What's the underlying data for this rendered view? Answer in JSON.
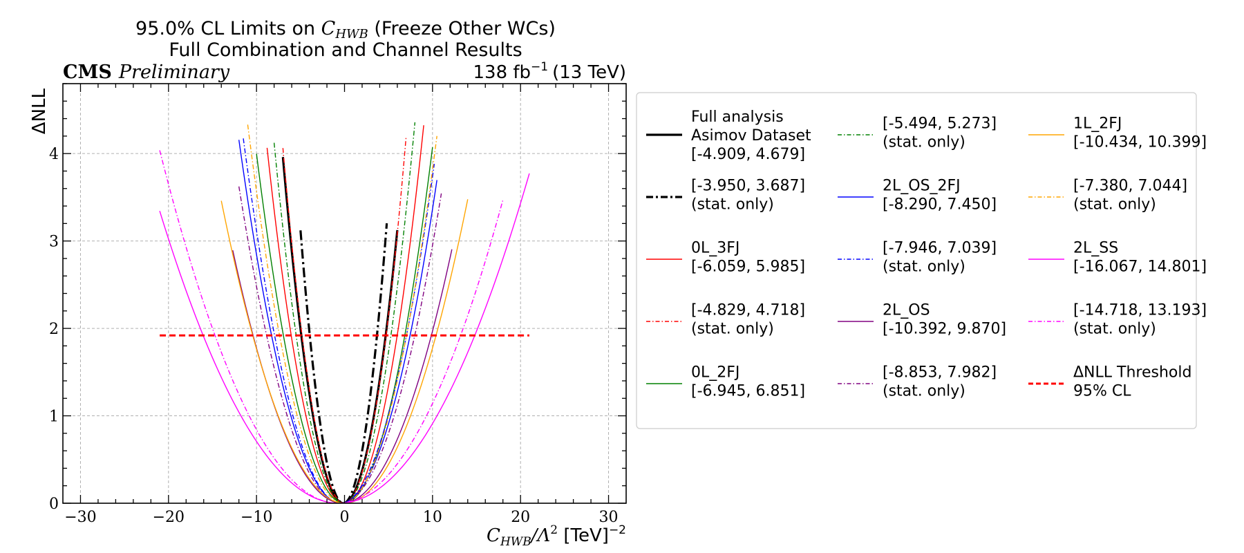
{
  "chart_data": {
    "type": "line",
    "title": {
      "line1_prefix": "95.0% CL Limits on ",
      "line1_symbol": "C",
      "line1_symbol_sub": "HWB",
      "line1_suffix": " (Freeze Other WCs)",
      "line2": "Full Combination and Channel Results"
    },
    "experiment": {
      "name": "CMS",
      "status": "Preliminary"
    },
    "luminosity": {
      "value": "138 fb",
      "exponent": "−1",
      "energy": "(13 TeV)"
    },
    "xlabel": {
      "symbol": "C",
      "sub": "HWB",
      "rest": "/Λ",
      "power": "2",
      "unit": " [TeV]",
      "unit_power": "−2"
    },
    "ylabel": "ΔNLL",
    "xlim": [
      -32,
      32
    ],
    "ylim": [
      0,
      4.8
    ],
    "x_ticks": [
      -30,
      -20,
      -10,
      0,
      10,
      20,
      30
    ],
    "x_tick_labels": [
      "−30",
      "−20",
      "−10",
      "0",
      "10",
      "20",
      "30"
    ],
    "y_ticks": [
      0,
      1,
      2,
      3,
      4
    ],
    "y_tick_labels": [
      "0",
      "1",
      "2",
      "3",
      "4"
    ],
    "grid": true,
    "legend_placement": "right, outside plot, 3 columns",
    "threshold": {
      "y": 1.92,
      "x_range": [
        -21,
        21
      ],
      "color": "#ff0000",
      "style": "dashed"
    },
    "series": [
      {
        "name": "Full analysis",
        "label_lines": [
          "Full analysis",
          "Asimov Dataset",
          "[-4.909, 4.679]"
        ],
        "lo": -4.909,
        "hi": 4.679,
        "color": "#000000",
        "style": "solid",
        "width": 3.2,
        "xrange": [
          -7.0,
          6.0
        ]
      },
      {
        "name": "stat. only",
        "label_lines": [
          "[-3.950, 3.687]",
          "(stat. only)"
        ],
        "lo": -3.95,
        "hi": 3.687,
        "color": "#000000",
        "style": "dashdot",
        "width": 3.2,
        "xrange": [
          -5.0,
          4.8
        ]
      },
      {
        "name": "0L_3FJ",
        "label_lines": [
          "0L_3FJ",
          "[-6.059, 5.985]"
        ],
        "lo": -6.059,
        "hi": 5.985,
        "color": "#ff0000",
        "style": "solid",
        "width": 1.4,
        "xrange": [
          -8.8,
          9.0
        ]
      },
      {
        "name": "stat. only",
        "label_lines": [
          "[-4.829, 4.718]",
          "(stat. only)"
        ],
        "lo": -4.829,
        "hi": 4.718,
        "color": "#ff0000",
        "style": "dashdot",
        "width": 1.4,
        "xrange": [
          -7.0,
          7.0
        ]
      },
      {
        "name": "0L_2FJ",
        "label_lines": [
          "0L_2FJ",
          "[-6.945, 6.851]"
        ],
        "lo": -6.945,
        "hi": 6.851,
        "color": "#008000",
        "style": "solid",
        "width": 1.4,
        "xrange": [
          -10.0,
          10.0
        ]
      },
      {
        "name": "stat. only",
        "label_lines": [
          "[-5.494, 5.273]",
          "(stat. only)"
        ],
        "lo": -5.494,
        "hi": 5.273,
        "color": "#008000",
        "style": "dashdot",
        "width": 1.4,
        "xrange": [
          -8.0,
          8.0
        ]
      },
      {
        "name": "2L_OS_2FJ",
        "label_lines": [
          "2L_OS_2FJ",
          "[-8.290, 7.450]"
        ],
        "lo": -8.29,
        "hi": 7.45,
        "color": "#0000ff",
        "style": "solid",
        "width": 1.4,
        "xrange": [
          -12.0,
          10.5
        ]
      },
      {
        "name": "stat. only",
        "label_lines": [
          "[-7.946, 7.039]",
          "(stat. only)"
        ],
        "lo": -7.946,
        "hi": 7.039,
        "color": "#0000ff",
        "style": "dashdot",
        "width": 1.4,
        "xrange": [
          -11.5,
          10.2
        ]
      },
      {
        "name": "2L_OS",
        "label_lines": [
          "2L_OS",
          "[-10.392, 9.870]"
        ],
        "lo": -10.392,
        "hi": 9.87,
        "color": "#800080",
        "style": "solid",
        "width": 1.4,
        "xrange": [
          -12.7,
          12.2
        ]
      },
      {
        "name": "stat. only",
        "label_lines": [
          "[-8.853, 7.982]",
          "(stat. only)"
        ],
        "lo": -8.853,
        "hi": 7.982,
        "color": "#800080",
        "style": "dashdot",
        "width": 1.4,
        "xrange": [
          -12.0,
          11.0
        ]
      },
      {
        "name": "1L_2FJ",
        "label_lines": [
          "1L_2FJ",
          "[-10.434, 10.399]"
        ],
        "lo": -10.434,
        "hi": 10.399,
        "color": "#ffa500",
        "style": "solid",
        "width": 1.4,
        "xrange": [
          -14.0,
          14.0
        ]
      },
      {
        "name": "stat. only",
        "label_lines": [
          "[-7.380, 7.044]",
          "(stat. only)"
        ],
        "lo": -7.38,
        "hi": 7.044,
        "color": "#ffa500",
        "style": "dashdot",
        "width": 1.4,
        "xrange": [
          -11.0,
          10.5
        ]
      },
      {
        "name": "2L_SS",
        "label_lines": [
          "2L_SS",
          "[-16.067, 14.801]"
        ],
        "lo": -16.067,
        "hi": 14.801,
        "color": "#ff00ff",
        "style": "solid",
        "width": 1.4,
        "xrange": [
          -21.0,
          21.0
        ]
      },
      {
        "name": "stat. only",
        "label_lines": [
          "[-14.718, 13.193]",
          "(stat. only)"
        ],
        "lo": -14.718,
        "hi": 13.193,
        "color": "#ff00ff",
        "style": "dashdot",
        "width": 1.4,
        "xrange": [
          -21.0,
          18.0
        ]
      }
    ],
    "threshold_legend": {
      "label_lines": [
        "ΔNLL Threshold",
        "95% CL"
      ]
    },
    "legend_order": [
      0,
      1,
      2,
      3,
      4,
      5,
      6,
      7,
      8,
      9,
      10,
      11,
      12,
      13,
      "threshold"
    ]
  }
}
